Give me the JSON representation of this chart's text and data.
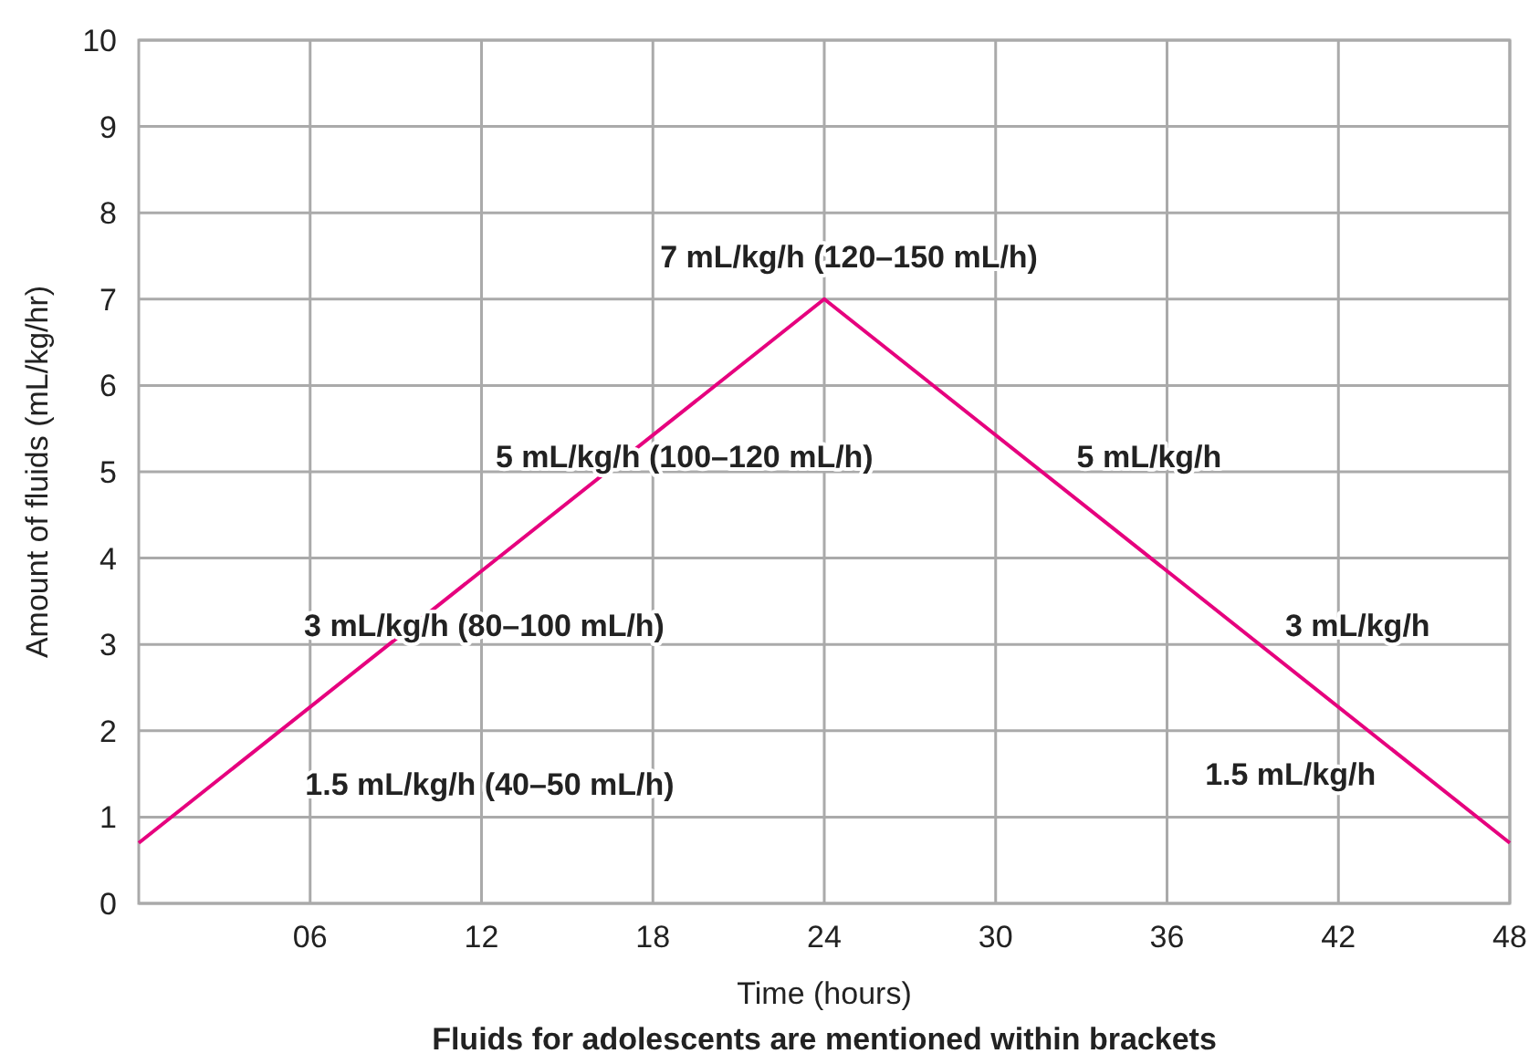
{
  "chart_data": {
    "type": "line",
    "xlabel": "Time (hours)",
    "ylabel": "Amount of fluids (mL/kg/hr)",
    "x": [
      0,
      24,
      48
    ],
    "series": [
      {
        "color": "#e6007e",
        "values": [
          0.7,
          7,
          0.7
        ]
      }
    ],
    "xlim": [
      0,
      48
    ],
    "xticks": [
      {
        "value": 6,
        "label": "06"
      },
      12,
      18,
      24,
      30,
      36,
      42,
      48
    ],
    "ylim": [
      0,
      10
    ],
    "yticks": [
      0,
      1,
      2,
      3,
      4,
      5,
      6,
      7,
      8,
      9,
      10
    ],
    "grid": true,
    "marker": "none",
    "line_style": "solid",
    "annotations": [
      "7 mL/kg/h (120–150 mL/h)",
      "5 mL/kg/h (100–120 mL/h)",
      "5 mL/kg/h",
      "3 mL/kg/h (80–100 mL/h)",
      "3 mL/kg/h",
      "1.5 mL/kg/h (40–50 mL/h)",
      "1.5 mL/kg/h",
      "Fluids for adolescents are mentioned within brackets"
    ]
  }
}
